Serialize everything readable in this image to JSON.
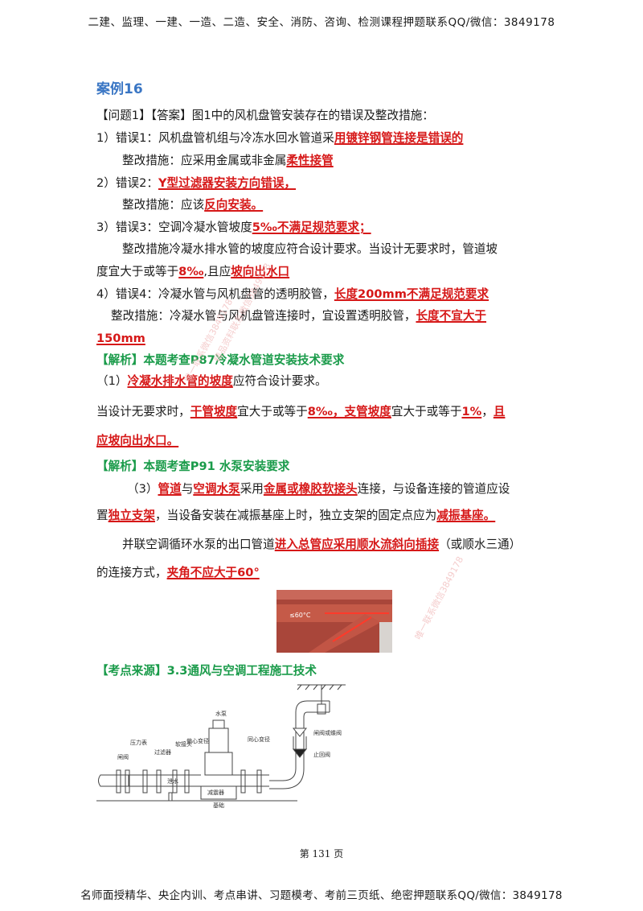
{
  "header": "二建、监理、一建、一造、二造、安全、消防、咨询、检测课程押题联系QQ/微信：3849178",
  "footer": "名师面授精华、央企内训、考点串讲、习题模考、考前三页纸、绝密押题联系QQ/微信：3849178",
  "page_number": "第 131 页",
  "case_title": "案例16",
  "lines": {
    "q1": "【问题1】【答案】图1中的风机盘管安装存在的错误及整改措施：",
    "e1a": "1）错误1：风机盘管机组与冷冻水回水管道采",
    "e1b": "用镀锌钢管连接是错误的",
    "f1a": "整改措施：应采用金属或非金属",
    "f1b": "柔性接管",
    "e2a": "2）错误2：",
    "e2b": "Y型过滤器安装方向错误，",
    "f2a": "整改措施：应该",
    "f2b": "反向安装。",
    "e3a": "3）错误3：空调冷凝水管坡度",
    "e3b": "5‰不满足规范要求；",
    "f3": "整改措施冷凝水排水管的坡度应符合设计要求。当设计无要求时，管道坡",
    "f3b1": "度宜大于或等于",
    "f3b2": "8‰",
    "f3b3": ",且应",
    "f3b4": "坡向出水口",
    "e4a": "4）错误4：冷凝水管与风机盘管的透明胶管，",
    "e4b": "长度200mm不满足规范要求",
    "f4a": "整改措施：冷凝水管与风机盘管连接时，宜设置透明胶管，",
    "f4b": "长度不宜大于",
    "f4c": "150mm",
    "a1": "【解析】本题考查P87冷凝水管道安装技术要求",
    "a1l1a": "（1）",
    "a1l1b": "冷凝水排水管的坡度",
    "a1l1c": "应符合设计要求。",
    "a1l2a": "当设计无要求时，",
    "a1l2b": "干管坡度",
    "a1l2c": "宜大于或等于",
    "a1l2d": "8‰，支管坡度",
    "a1l2e": "宜大于或等于",
    "a1l2f": "1%",
    "a1l2g": "，",
    "a1l2h": "且",
    "a1l3": "应坡向出水口。",
    "a2": "【解析】本题考查P91  水泵安装要求",
    "a2l1a": "（3）",
    "a2l1b": "管道",
    "a2l1c": "与",
    "a2l1d": "空调水泵",
    "a2l1e": "采用",
    "a2l1f": "金属或橡胶软接头",
    "a2l1g": "连接，与设备连接的管道应设",
    "a2l2a": "置",
    "a2l2b": "独立支架",
    "a2l2c": "，当设备安装在减振基座上时，独立支架的固定点应为",
    "a2l2d": "减振基座。",
    "a2l3a": "并联空调循环水泵的出口管道",
    "a2l3b": "进入总管应采用顺水流斜向插接",
    "a2l3c": "（或顺水三通）",
    "a2l4a": "的连接方式，",
    "a2l4b": "夹角不应大于60°",
    "src": "【考点来源】3.3通风与空调工程施工技术"
  },
  "photo_label": "≤60°C",
  "diagram_labels": {
    "valve1": "闸阀",
    "gauge": "压力表",
    "filter": "过滤器",
    "soft": "软接头",
    "ecc": "偏心变径",
    "pump": "水泵",
    "conc": "同心变径",
    "drain": "泄水",
    "damper": "减震器",
    "base": "基础",
    "butterfly": "闸阀或蝶阀",
    "check": "止回阀"
  },
  "watermarks": [
    "唯一联系微信3849178",
    "精品资料联系微信3849178",
    "唯一联系微信3849178"
  ]
}
